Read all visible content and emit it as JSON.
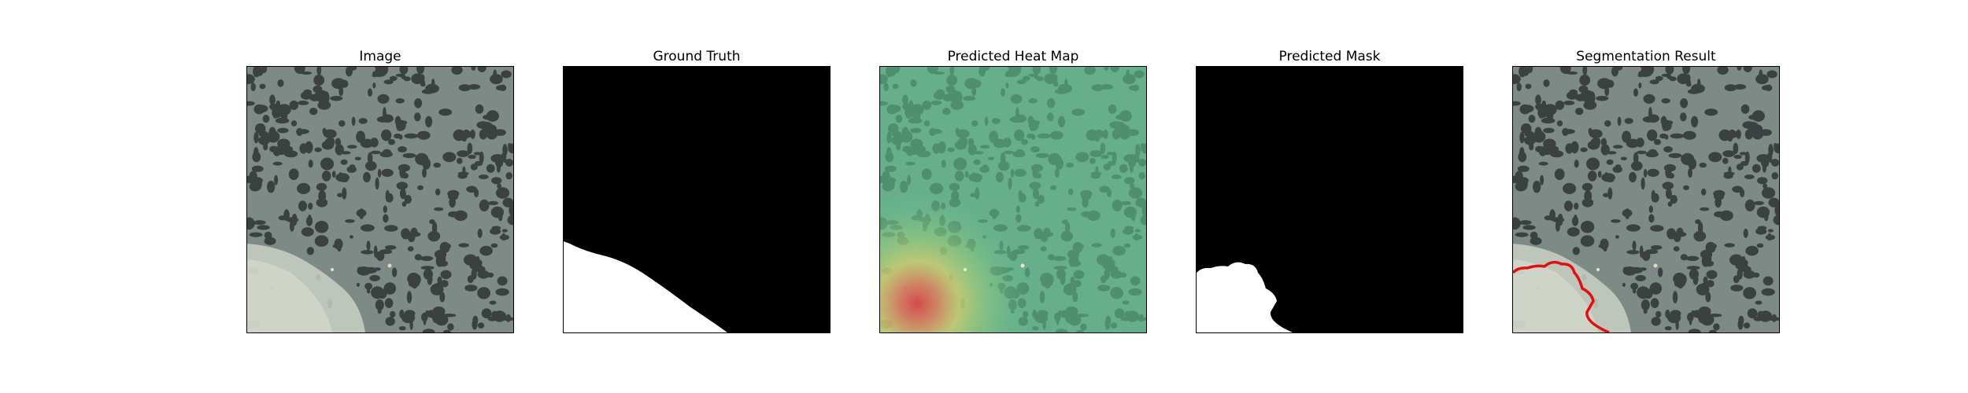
{
  "figure": {
    "panels": [
      {
        "title": "Image",
        "kind": "aerial-image"
      },
      {
        "title": "Ground Truth",
        "kind": "binary-mask"
      },
      {
        "title": "Predicted Heat Map",
        "kind": "heatmap-overlay"
      },
      {
        "title": "Predicted Mask",
        "kind": "binary-mask"
      },
      {
        "title": "Segmentation Result",
        "kind": "contour-overlay"
      }
    ],
    "colors": {
      "background_terrain": "#7e8a86",
      "tree_blobs": "#2f3534",
      "bright_region": "#c9cfc4",
      "mask_foreground": "#ffffff",
      "mask_background": "#000000",
      "heatmap_tint": "#5fc48a",
      "heatmap_hot": "#d9434a",
      "contour": "#e01010"
    }
  }
}
